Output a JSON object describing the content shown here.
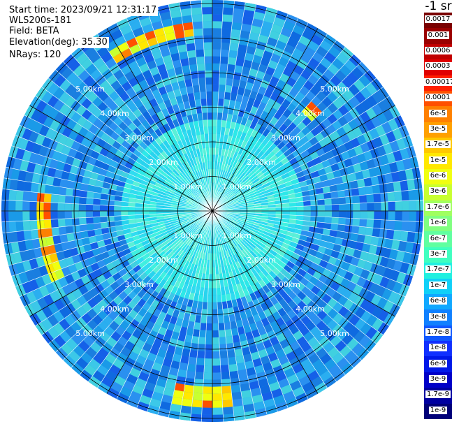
{
  "header": {
    "start_time": "Start time: 2023/09/21 12:31:17",
    "device": "WLS200s-181",
    "field": "Field: BETA",
    "elevation": "Elevation(deg): 35.30",
    "nrays": "NRays: 120"
  },
  "ppi": {
    "n_rays": 120,
    "max_range_km": 6.1,
    "ring_labels": [
      "1.00km",
      "2.00km",
      "3.00km",
      "4.00km",
      "5.00km"
    ],
    "colors": {
      "ring": "#000000",
      "ray_line": "#ffffff",
      "near_field": "#2de8e8",
      "background": "#1a9ae8"
    }
  },
  "colorbar": {
    "unit": "-1 sr",
    "labels": [
      "0.0017",
      "0.001",
      "0.0006",
      "0.0003",
      "0.00017",
      "0.0001",
      "6e-5",
      "3e-5",
      "1.7e-5",
      "1e-5",
      "6e-6",
      "3e-6",
      "1.7e-6",
      "1e-6",
      "6e-7",
      "3e-7",
      "1.7e-7",
      "1e-7",
      "6e-8",
      "3e-8",
      "1.7e-8",
      "1e-8",
      "6e-9",
      "3e-9",
      "1.7e-9",
      "1e-9"
    ],
    "colors": [
      "#7a0000",
      "#9a0000",
      "#c00000",
      "#e00000",
      "#ff2000",
      "#ff5000",
      "#ff8000",
      "#ffa000",
      "#ffc800",
      "#ffe800",
      "#f0ff10",
      "#c8ff30",
      "#a0ff60",
      "#80ff80",
      "#60ffa0",
      "#40ffc0",
      "#20f0e0",
      "#10d0f8",
      "#10a8ff",
      "#1080ff",
      "#1058ff",
      "#1030ff",
      "#0018e8",
      "#0000c8",
      "#0000a0",
      "#000078"
    ]
  }
}
